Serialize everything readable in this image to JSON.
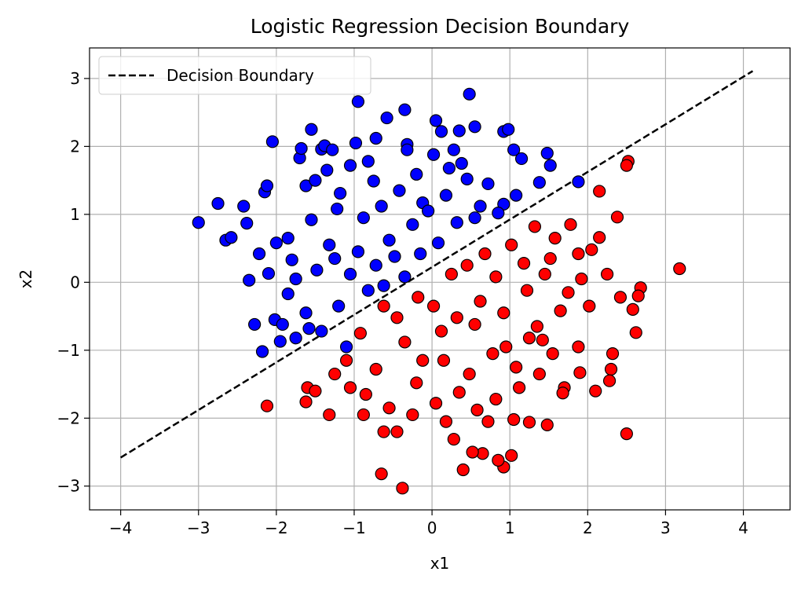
{
  "chart_data": {
    "type": "scatter",
    "title": "Logistic Regression Decision Boundary",
    "xlabel": "x1",
    "ylabel": "x2",
    "xlim": [
      -4.4,
      4.6
    ],
    "ylim": [
      -3.35,
      3.45
    ],
    "xticks": [
      -4,
      -3,
      -2,
      -1,
      0,
      1,
      2,
      3,
      4
    ],
    "yticks": [
      -3,
      -2,
      -1,
      0,
      1,
      2,
      3
    ],
    "xtick_labels": [
      "−4",
      "−3",
      "−2",
      "−1",
      "0",
      "1",
      "2",
      "3",
      "4"
    ],
    "ytick_labels": [
      "−3",
      "−2",
      "−1",
      "0",
      "1",
      "2",
      "3"
    ],
    "grid": true,
    "legend": {
      "position": "top-left",
      "entries": [
        "Decision Boundary"
      ]
    },
    "colors": {
      "class0": "#0000ff",
      "class1": "#ff0000",
      "boundary": "#000000",
      "marker_edge": "#000000",
      "grid": "#b0b0b0"
    },
    "boundary_line": {
      "x": [
        -4.0,
        4.12
      ],
      "y": [
        -2.58,
        3.11
      ],
      "style": "dashed"
    },
    "series": [
      {
        "color": "#0000ff",
        "points": [
          [
            -3.0,
            0.88
          ],
          [
            -2.75,
            1.16
          ],
          [
            -2.65,
            0.62
          ],
          [
            -2.58,
            0.66
          ],
          [
            -2.42,
            1.12
          ],
          [
            -2.38,
            0.87
          ],
          [
            -2.35,
            0.03
          ],
          [
            -2.22,
            0.42
          ],
          [
            -2.15,
            1.33
          ],
          [
            -2.12,
            1.42
          ],
          [
            -2.05,
            2.07
          ],
          [
            -2.1,
            0.13
          ],
          [
            -2.0,
            0.58
          ],
          [
            -1.95,
            -0.87
          ],
          [
            -1.85,
            -0.17
          ],
          [
            -1.8,
            0.33
          ],
          [
            -1.75,
            -0.82
          ],
          [
            -1.7,
            1.83
          ],
          [
            -1.68,
            1.97
          ],
          [
            -1.62,
            1.42
          ],
          [
            -1.55,
            2.25
          ],
          [
            -1.5,
            1.5
          ],
          [
            -1.42,
            1.96
          ],
          [
            -1.38,
            2.01
          ],
          [
            -1.35,
            1.65
          ],
          [
            -1.28,
            1.95
          ],
          [
            -1.22,
            1.08
          ],
          [
            -1.18,
            1.31
          ],
          [
            -1.1,
            -0.95
          ],
          [
            -0.98,
            2.05
          ],
          [
            -0.95,
            2.66
          ],
          [
            -0.82,
            1.78
          ],
          [
            -0.75,
            1.49
          ],
          [
            -0.58,
            2.42
          ],
          [
            -0.35,
            2.54
          ],
          [
            -0.32,
            2.03
          ],
          [
            -0.2,
            1.59
          ],
          [
            -0.12,
            1.17
          ],
          [
            0.05,
            2.38
          ],
          [
            0.12,
            2.22
          ],
          [
            0.28,
            1.95
          ],
          [
            0.35,
            2.23
          ],
          [
            0.48,
            2.77
          ],
          [
            0.55,
            2.29
          ],
          [
            0.92,
            2.22
          ],
          [
            0.98,
            2.25
          ],
          [
            1.05,
            1.95
          ],
          [
            1.15,
            1.82
          ],
          [
            1.48,
            1.9
          ],
          [
            1.52,
            1.72
          ],
          [
            1.38,
            1.47
          ],
          [
            1.88,
            1.48
          ],
          [
            1.08,
            1.28
          ],
          [
            0.92,
            1.15
          ],
          [
            -1.85,
            0.65
          ],
          [
            -1.55,
            0.92
          ],
          [
            -1.48,
            0.18
          ],
          [
            -1.32,
            0.55
          ],
          [
            -1.2,
            -0.35
          ],
          [
            -0.95,
            0.45
          ],
          [
            -0.88,
            0.95
          ],
          [
            -0.72,
            0.25
          ],
          [
            -0.65,
            1.12
          ],
          [
            -0.55,
            0.62
          ],
          [
            -0.42,
            1.35
          ],
          [
            -0.35,
            0.08
          ],
          [
            -0.25,
            0.85
          ],
          [
            -0.15,
            0.42
          ],
          [
            -0.05,
            1.05
          ],
          [
            0.08,
            0.58
          ],
          [
            0.18,
            1.28
          ],
          [
            0.32,
            0.88
          ],
          [
            0.45,
            1.52
          ],
          [
            0.55,
            0.95
          ],
          [
            0.72,
            1.45
          ],
          [
            0.85,
            1.02
          ],
          [
            -1.05,
            0.12
          ],
          [
            -0.82,
            -0.12
          ],
          [
            -0.62,
            -0.05
          ],
          [
            -1.62,
            -0.45
          ],
          [
            -1.42,
            -0.72
          ],
          [
            -1.75,
            0.05
          ],
          [
            -0.48,
            0.38
          ],
          [
            0.22,
            1.68
          ],
          [
            -2.28,
            -0.62
          ],
          [
            -2.18,
            -1.02
          ],
          [
            -2.02,
            -0.55
          ],
          [
            -1.92,
            -0.62
          ],
          [
            -1.58,
            -0.68
          ],
          [
            -1.25,
            0.35
          ],
          [
            -0.32,
            1.95
          ],
          [
            0.02,
            1.88
          ],
          [
            0.62,
            1.12
          ],
          [
            -0.72,
            2.12
          ],
          [
            -1.05,
            1.72
          ],
          [
            0.38,
            1.75
          ]
        ]
      },
      {
        "color": "#ff0000",
        "points": [
          [
            3.18,
            0.2
          ],
          [
            2.68,
            -0.08
          ],
          [
            2.65,
            -0.2
          ],
          [
            2.62,
            -0.74
          ],
          [
            2.58,
            -0.4
          ],
          [
            2.52,
            1.78
          ],
          [
            2.5,
            1.72
          ],
          [
            2.5,
            -2.23
          ],
          [
            2.42,
            -0.22
          ],
          [
            2.38,
            0.96
          ],
          [
            2.32,
            -1.05
          ],
          [
            2.3,
            -1.28
          ],
          [
            2.28,
            -1.45
          ],
          [
            2.25,
            0.12
          ],
          [
            2.15,
            1.34
          ],
          [
            2.15,
            0.66
          ],
          [
            2.1,
            -1.6
          ],
          [
            2.05,
            0.48
          ],
          [
            1.9,
            -1.33
          ],
          [
            1.88,
            -0.95
          ],
          [
            1.7,
            -1.55
          ],
          [
            1.68,
            -1.63
          ],
          [
            1.48,
            -2.1
          ],
          [
            1.42,
            -0.85
          ],
          [
            1.25,
            -2.06
          ],
          [
            1.05,
            -2.02
          ],
          [
            1.02,
            -2.55
          ],
          [
            0.92,
            -2.72
          ],
          [
            0.85,
            -2.62
          ],
          [
            0.65,
            -2.52
          ],
          [
            0.52,
            -2.5
          ],
          [
            0.4,
            -2.76
          ],
          [
            0.28,
            -2.31
          ],
          [
            -0.38,
            -3.03
          ],
          [
            -0.45,
            -2.2
          ],
          [
            -0.65,
            -2.82
          ],
          [
            -0.62,
            -2.2
          ],
          [
            -0.88,
            -1.95
          ],
          [
            -1.32,
            -1.95
          ],
          [
            -1.62,
            -1.76
          ],
          [
            -1.6,
            -1.55
          ],
          [
            -2.12,
            -1.82
          ],
          [
            -1.5,
            -1.6
          ],
          [
            -1.1,
            -1.15
          ],
          [
            -0.92,
            -0.75
          ],
          [
            -0.72,
            -1.28
          ],
          [
            -0.45,
            -0.52
          ],
          [
            -0.2,
            -1.48
          ],
          [
            0.02,
            -0.35
          ],
          [
            0.15,
            -1.15
          ],
          [
            0.32,
            -0.52
          ],
          [
            0.48,
            -1.35
          ],
          [
            0.62,
            -0.28
          ],
          [
            0.78,
            -1.05
          ],
          [
            0.92,
            -0.45
          ],
          [
            1.08,
            -1.25
          ],
          [
            1.22,
            -0.12
          ],
          [
            1.35,
            -0.65
          ],
          [
            1.52,
            0.35
          ],
          [
            1.65,
            -0.42
          ],
          [
            1.78,
            0.85
          ],
          [
            1.92,
            0.05
          ],
          [
            2.02,
            -0.35
          ],
          [
            0.25,
            0.12
          ],
          [
            0.45,
            0.25
          ],
          [
            0.68,
            0.42
          ],
          [
            0.82,
            0.08
          ],
          [
            1.02,
            0.55
          ],
          [
            1.18,
            0.28
          ],
          [
            1.32,
            0.82
          ],
          [
            1.45,
            0.12
          ],
          [
            1.58,
            0.65
          ],
          [
            -0.85,
            -1.65
          ],
          [
            -0.55,
            -1.85
          ],
          [
            -0.25,
            -1.95
          ],
          [
            0.05,
            -1.78
          ],
          [
            0.35,
            -1.62
          ],
          [
            0.58,
            -1.88
          ],
          [
            0.82,
            -1.72
          ],
          [
            1.12,
            -1.55
          ],
          [
            1.38,
            -1.35
          ],
          [
            -1.25,
            -1.35
          ],
          [
            -1.05,
            -1.55
          ],
          [
            -0.35,
            -0.88
          ],
          [
            0.12,
            -0.72
          ],
          [
            0.55,
            -0.62
          ],
          [
            0.95,
            -0.95
          ],
          [
            1.25,
            -0.82
          ],
          [
            1.75,
            -0.15
          ],
          [
            1.88,
            0.42
          ],
          [
            -0.62,
            -0.35
          ],
          [
            -0.18,
            -0.22
          ],
          [
            0.72,
            -2.05
          ],
          [
            1.55,
            -1.05
          ],
          [
            0.18,
            -2.05
          ],
          [
            -0.12,
            -1.15
          ]
        ]
      }
    ]
  }
}
